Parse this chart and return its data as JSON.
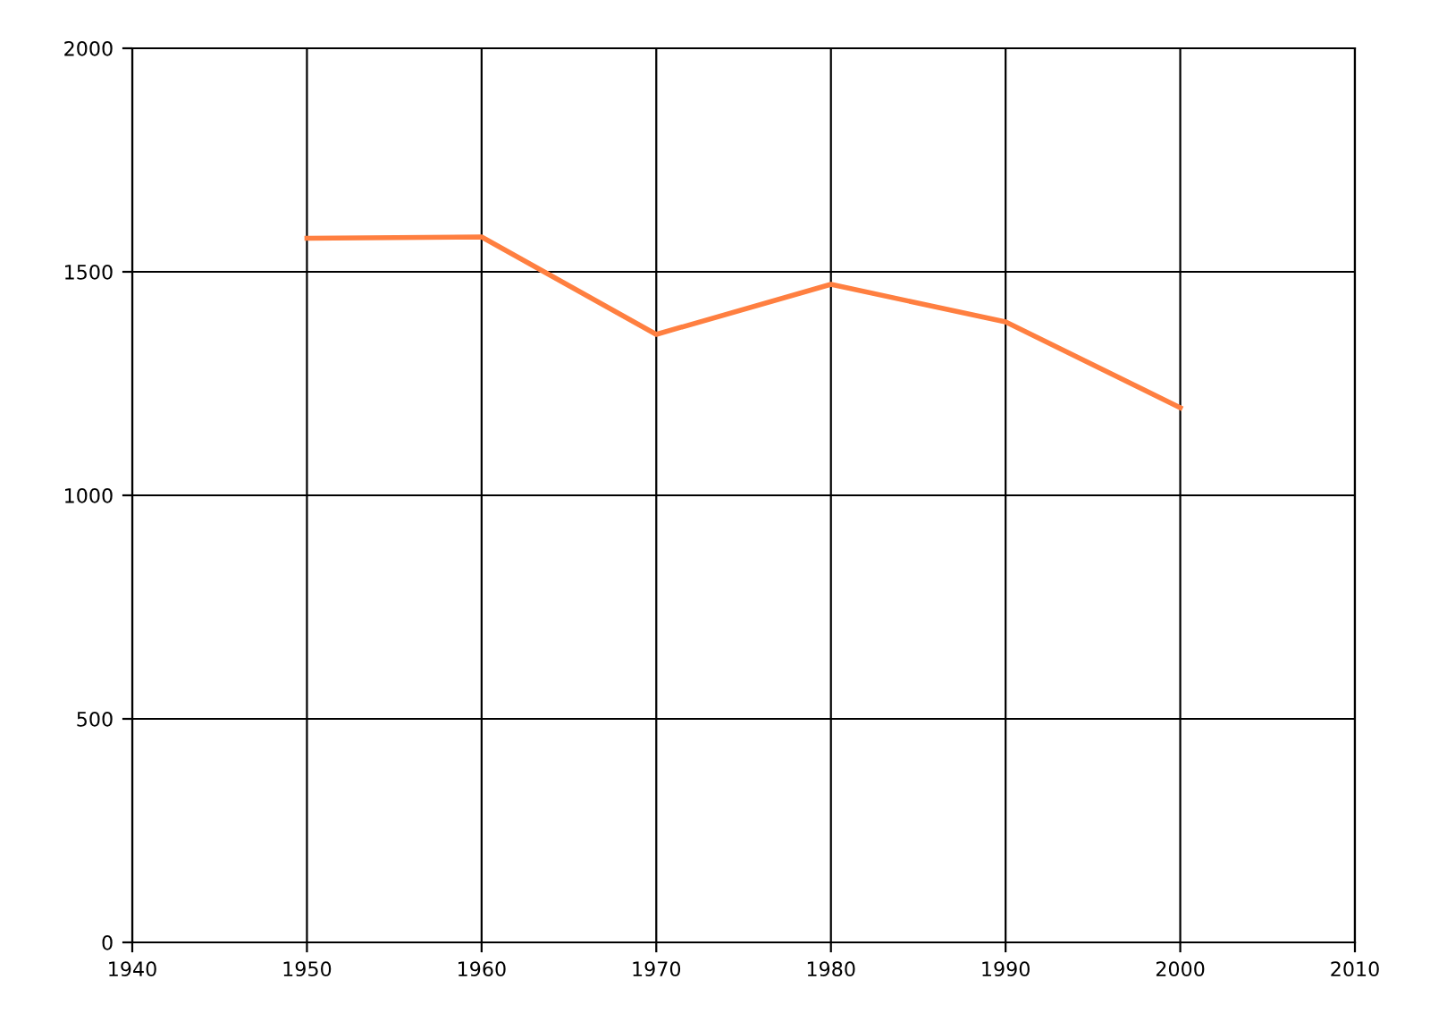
{
  "chart_data": {
    "type": "line",
    "x": [
      1950,
      1960,
      1970,
      1980,
      1990,
      2000
    ],
    "series": [
      {
        "color": "#ff7f40",
        "values": [
          1575,
          1578,
          1360,
          1472,
          1388,
          1196
        ]
      }
    ],
    "xlim": [
      1940,
      2010
    ],
    "xticks": [
      1940,
      1950,
      1960,
      1970,
      1980,
      1990,
      2000,
      2010
    ],
    "ylim": [
      0,
      2000
    ],
    "yticks": [
      0,
      500,
      1000,
      1500,
      2000
    ],
    "grid": true,
    "marker": "none",
    "line_style": "solid"
  }
}
